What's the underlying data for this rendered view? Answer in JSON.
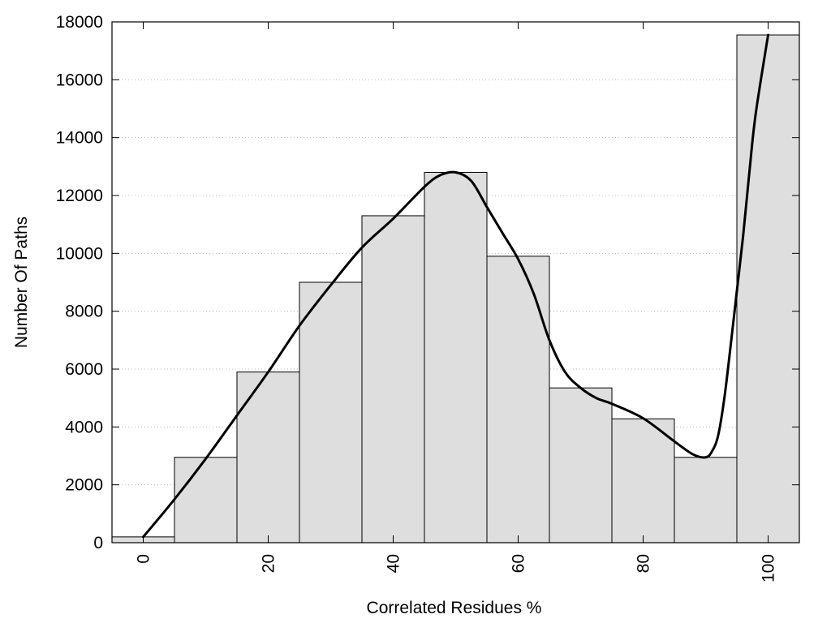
{
  "chart_data": {
    "type": "bar",
    "title": "",
    "xlabel": "Correlated Residues %",
    "ylabel": "Number Of Paths",
    "xlim": [
      -5,
      105
    ],
    "ylim": [
      0,
      18000
    ],
    "grid": "horizontal-dotted",
    "legend": "none",
    "bar_color": "#dedede",
    "bar_edge_color": "#000000",
    "line_color": "#000000",
    "x_ticks": [
      0,
      20,
      40,
      60,
      80,
      100
    ],
    "x_tick_labels": [
      "0",
      "20",
      "40",
      "60",
      "80",
      "100"
    ],
    "y_ticks": [
      0,
      2000,
      4000,
      6000,
      8000,
      10000,
      12000,
      14000,
      16000,
      18000
    ],
    "y_tick_labels": [
      "0",
      "2000",
      "4000",
      "6000",
      "8000",
      "10000",
      "12000",
      "14000",
      "16000",
      "18000"
    ],
    "bins": [
      {
        "center": 0,
        "value": 200
      },
      {
        "center": 10,
        "value": 2950
      },
      {
        "center": 20,
        "value": 5900
      },
      {
        "center": 30,
        "value": 9000
      },
      {
        "center": 40,
        "value": 11300
      },
      {
        "center": 50,
        "value": 12800
      },
      {
        "center": 60,
        "value": 9900
      },
      {
        "center": 70,
        "value": 5350
      },
      {
        "center": 80,
        "value": 4280
      },
      {
        "center": 90,
        "value": 2950
      },
      {
        "center": 100,
        "value": 17550
      }
    ],
    "bin_width": 10,
    "curve": {
      "x": [
        0,
        5,
        10,
        15,
        20,
        25,
        30,
        35,
        40,
        45,
        47.5,
        50,
        52.5,
        55,
        57.5,
        60,
        62.5,
        65,
        67.5,
        70,
        72.5,
        75,
        80,
        85,
        88,
        90,
        91,
        92,
        93,
        94,
        95,
        96,
        97,
        98,
        100
      ],
      "y": [
        200,
        1500,
        2900,
        4400,
        5900,
        7500,
        8900,
        10200,
        11200,
        12300,
        12700,
        12800,
        12500,
        11600,
        10700,
        9800,
        8600,
        7000,
        5900,
        5350,
        5000,
        4800,
        4300,
        3500,
        3050,
        2950,
        3150,
        3700,
        5000,
        6800,
        8700,
        10600,
        12800,
        14800,
        17550
      ]
    }
  }
}
